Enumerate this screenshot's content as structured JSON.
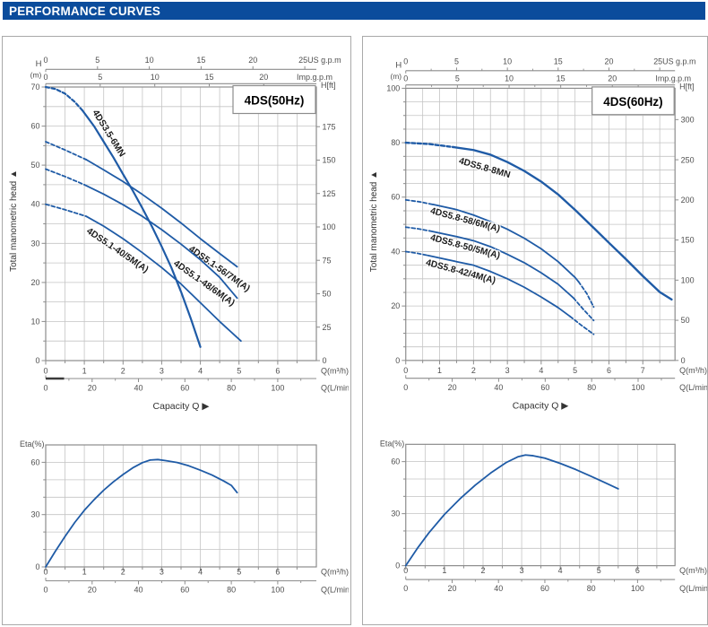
{
  "header": {
    "title": "PERFORMANCE CURVES"
  },
  "colors": {
    "accent_blue": "#0b4c9c",
    "curve_blue": "#1f5ba6",
    "grid": "#c4c4c4",
    "frame": "#8c8c8c",
    "tick_text": "#4f4f4f",
    "label_text": "#1c1c1c",
    "axis_mark_dark": "#3a3a3a"
  },
  "shared": {
    "y_axis_label": "Total manometric head",
    "y_axis_arrow": "▲",
    "capacity_label": "Capacity Q",
    "capacity_arrow": "▶",
    "head_unit_top": "H",
    "head_unit_bottom": "(m)",
    "head_ft_label": "H[ft]",
    "eta_label": "Eta(%)",
    "flow_unit": "Q(m³/h)",
    "flow_unit_lmin": "Q(L/min)"
  },
  "panels": [
    {
      "id": "50hz",
      "badge": "4DS(50Hz)",
      "charts": [
        "main-50hz",
        "eta-50hz"
      ]
    },
    {
      "id": "60hz",
      "badge": "4DS(60Hz)",
      "charts": [
        "main-60hz",
        "eta-60hz"
      ]
    }
  ],
  "chart_data": [
    {
      "id": "main-50hz",
      "type": "line",
      "title": "4DS(50Hz)",
      "xlabel": "Q(m³/h)",
      "x2label": "Q(L/min)",
      "ylabel": "H (m)",
      "y2label": "H[ft]",
      "xlim": [
        0,
        7
      ],
      "ylim": [
        0,
        70
      ],
      "xgrid": 0.5,
      "ygrid": 5,
      "xticks": [
        0,
        1,
        2,
        3,
        4,
        5,
        6
      ],
      "yticks": [
        0,
        10,
        20,
        30,
        40,
        50,
        60,
        70
      ],
      "ytick_minor": 5,
      "us_gpm": {
        "ticks": [
          0,
          5,
          10,
          15,
          20
        ],
        "end_tick": 25,
        "end_label": "25US g.p.m",
        "m3h_per_unit": 0.268
      },
      "imp_gpm": {
        "ticks": [
          0,
          5,
          10,
          15,
          20
        ],
        "label": "Imp.g.p.m",
        "m3h_per_unit": 0.282
      },
      "lmin": {
        "ticks": [
          0,
          20,
          40,
          60,
          80,
          100
        ],
        "minor_step": 10,
        "label": "Q(L/min)",
        "m3h_per_unit": 0.06,
        "zero_mark": true
      },
      "hft": {
        "ticks": [
          0,
          25,
          50,
          75,
          100,
          125,
          150,
          175
        ],
        "label": "H[ft]",
        "m_per_ft": 0.342
      },
      "series": [
        {
          "name": "4DS3.5-6MN",
          "width": 2.2,
          "label": {
            "x": 100,
            "y": 84,
            "angle": 58
          },
          "dash": [
            [
              0,
              70
            ],
            [
              0.25,
              69.5
            ],
            [
              0.5,
              68.3
            ],
            [
              0.75,
              66.2
            ],
            [
              0.95,
              64
            ]
          ],
          "solid": [
            [
              0.95,
              64
            ],
            [
              1.25,
              60
            ],
            [
              1.5,
              56
            ],
            [
              1.75,
              52
            ],
            [
              2,
              47.7
            ],
            [
              2.25,
              43.5
            ],
            [
              2.5,
              39
            ],
            [
              2.75,
              34.3
            ],
            [
              3,
              29.2
            ],
            [
              3.25,
              23.8
            ],
            [
              3.5,
              17.6
            ],
            [
              3.75,
              10.8
            ],
            [
              4,
              3.5
            ]
          ]
        },
        {
          "name": "4DS5.1-56/7M(A)",
          "width": 1.8,
          "label": {
            "x": 207,
            "y": 238,
            "angle": 35
          },
          "dash": [
            [
              0,
              56
            ],
            [
              0.5,
              53.9
            ],
            [
              1.05,
              51.4
            ]
          ],
          "solid": [
            [
              1.05,
              51.4
            ],
            [
              1.5,
              48.8
            ],
            [
              2,
              45.8
            ],
            [
              2.5,
              42.5
            ],
            [
              3,
              39
            ],
            [
              3.5,
              35.2
            ],
            [
              4,
              31.2
            ],
            [
              4.5,
              27.4
            ],
            [
              4.95,
              24
            ]
          ]
        },
        {
          "name": "4DS5.1-48/6M(A)",
          "width": 1.8,
          "label": {
            "x": 190,
            "y": 254,
            "angle": 35
          },
          "dash": [
            [
              0,
              49
            ],
            [
              0.5,
              47.1
            ],
            [
              1,
              45
            ]
          ],
          "solid": [
            [
              1,
              45
            ],
            [
              1.5,
              42.6
            ],
            [
              2,
              39.9
            ],
            [
              2.5,
              36.9
            ],
            [
              3,
              33.5
            ],
            [
              3.5,
              29.8
            ],
            [
              4,
              25.8
            ],
            [
              4.5,
              21.3
            ],
            [
              4.95,
              16
            ]
          ]
        },
        {
          "name": "4DS5.1-40/5M(A)",
          "width": 1.8,
          "label": {
            "x": 93,
            "y": 218,
            "angle": 34
          },
          "dash": [
            [
              0,
              40
            ],
            [
              0.5,
              38.6
            ],
            [
              1.05,
              36.9
            ]
          ],
          "solid": [
            [
              1.05,
              36.9
            ],
            [
              1.5,
              34.4
            ],
            [
              2,
              31.2
            ],
            [
              2.5,
              27.6
            ],
            [
              3,
              23.8
            ],
            [
              3.5,
              19.6
            ],
            [
              4,
              14.8
            ],
            [
              4.5,
              10
            ],
            [
              5.05,
              5
            ]
          ]
        }
      ]
    },
    {
      "id": "eta-50hz",
      "type": "line",
      "ylabel": "Eta(%)",
      "xlabel": "Q(m³/h)",
      "x2label": "Q(L/min)",
      "xlim": [
        0,
        7
      ],
      "ylim": [
        0,
        70
      ],
      "xgrid": 0.5,
      "ygrid": 10,
      "xticks": [
        0,
        1,
        2,
        3,
        4,
        5,
        6
      ],
      "yticks": [
        0,
        30,
        60
      ],
      "ytick_minor": 10,
      "lmin": {
        "ticks": [
          0,
          20,
          40,
          60,
          80,
          100
        ],
        "minor_step": 10,
        "label": "Q(L/min)",
        "m3h_per_unit": 0.06
      },
      "series": [
        {
          "name": "eta",
          "width": 1.8,
          "solid": [
            [
              0,
              0
            ],
            [
              0.25,
              9
            ],
            [
              0.5,
              17.5
            ],
            [
              0.75,
              25.5
            ],
            [
              1,
              32.5
            ],
            [
              1.25,
              38.5
            ],
            [
              1.5,
              44
            ],
            [
              1.75,
              48.8
            ],
            [
              2,
              53
            ],
            [
              2.25,
              56.8
            ],
            [
              2.5,
              59.8
            ],
            [
              2.7,
              61.3
            ],
            [
              2.9,
              61.6
            ],
            [
              3.1,
              61
            ],
            [
              3.4,
              59.9
            ],
            [
              3.7,
              58
            ],
            [
              4,
              55.5
            ],
            [
              4.3,
              52.7
            ],
            [
              4.6,
              49.3
            ],
            [
              4.8,
              46.8
            ],
            [
              4.95,
              42.6
            ]
          ]
        }
      ]
    },
    {
      "id": "main-60hz",
      "type": "line",
      "title": "4DS(60Hz)",
      "xlabel": "Q(m³/h)",
      "x2label": "Q(L/min)",
      "ylabel": "H (m)",
      "y2label": "H[ft]",
      "xlim": [
        0,
        7.95
      ],
      "ylim": [
        0,
        100
      ],
      "xgrid": 0.5,
      "ygrid": 5,
      "xticks": [
        0,
        1,
        2,
        3,
        4,
        5,
        6,
        7
      ],
      "yticks": [
        0,
        20,
        40,
        60,
        80,
        100
      ],
      "ytick_minor": 5,
      "us_gpm": {
        "ticks": [
          0,
          5,
          10,
          15,
          20
        ],
        "end_tick": 25,
        "end_label": "25US g.p.m",
        "m3h_per_unit": 0.3,
        "minor_step": 2.5
      },
      "imp_gpm": {
        "ticks": [
          0,
          5,
          10,
          15,
          20
        ],
        "label": "Imp.g.p.m",
        "m3h_per_unit": 0.305,
        "minor_step": 2.5
      },
      "lmin": {
        "ticks": [
          0,
          20,
          40,
          60,
          80,
          100
        ],
        "minor_step": 10,
        "label": "Q(L/min)",
        "m3h_per_unit": 0.0686
      },
      "hft": {
        "ticks": [
          0,
          50,
          100,
          150,
          200,
          250,
          300
        ],
        "label": "H[ft]",
        "m_per_ft": 0.295
      },
      "series": [
        {
          "name": "4DS5.8-8MN",
          "width": 2.4,
          "label": {
            "x": 107,
            "y": 140,
            "angle": 16
          },
          "dash": [
            [
              0,
              80
            ],
            [
              0.7,
              79.5
            ],
            [
              1.4,
              78.4
            ]
          ],
          "solid": [
            [
              1.4,
              78.4
            ],
            [
              2,
              77.3
            ],
            [
              2.5,
              75.6
            ],
            [
              3,
              72.9
            ],
            [
              3.5,
              69.6
            ],
            [
              4,
              65.7
            ],
            [
              4.5,
              61
            ],
            [
              5,
              55.3
            ],
            [
              5.5,
              49.3
            ],
            [
              6,
              43.2
            ],
            [
              6.5,
              37.2
            ],
            [
              7,
              31
            ],
            [
              7.5,
              25.1
            ],
            [
              7.85,
              22.4
            ]
          ]
        },
        {
          "name": "4DS5.8-58/6M(A)",
          "width": 1.8,
          "label": {
            "x": 75,
            "y": 196,
            "angle": 15
          },
          "dash": [
            [
              0,
              59
            ],
            [
              0.4,
              58.3
            ],
            [
              0.8,
              57.3
            ]
          ],
          "solid": [
            [
              0.8,
              57.3
            ],
            [
              1.5,
              55.4
            ],
            [
              2,
              53.4
            ],
            [
              2.5,
              51
            ],
            [
              3,
              48.2
            ],
            [
              3.5,
              44.9
            ],
            [
              4,
              41
            ],
            [
              4.5,
              36.3
            ],
            [
              5,
              30.5
            ],
            [
              5.1,
              29
            ]
          ],
          "dash2": [
            [
              5.1,
              29
            ],
            [
              5.35,
              24.5
            ],
            [
              5.55,
              19.6
            ]
          ]
        },
        {
          "name": "4DS5.8-50/5M(A)",
          "width": 1.8,
          "label": {
            "x": 75,
            "y": 226,
            "angle": 15
          },
          "dash": [
            [
              0,
              49
            ],
            [
              0.35,
              48.4
            ],
            [
              0.7,
              47.6
            ]
          ],
          "solid": [
            [
              0.7,
              47.6
            ],
            [
              1.5,
              45.5
            ],
            [
              2,
              44
            ],
            [
              2.5,
              41.8
            ],
            [
              3,
              39
            ],
            [
              3.5,
              35.9
            ],
            [
              4,
              32.2
            ],
            [
              4.5,
              28
            ],
            [
              4.95,
              23
            ]
          ],
          "dash2": [
            [
              4.95,
              23
            ],
            [
              5.25,
              18.7
            ],
            [
              5.55,
              14.7
            ]
          ]
        },
        {
          "name": "4DS5.8-42/4M(A)",
          "width": 1.8,
          "label": {
            "x": 70,
            "y": 254,
            "angle": 15
          },
          "dash": [
            [
              0,
              40
            ],
            [
              0.32,
              39.4
            ],
            [
              0.65,
              38.6
            ]
          ],
          "solid": [
            [
              0.65,
              38.6
            ],
            [
              1.5,
              36.3
            ],
            [
              2,
              35
            ],
            [
              2.5,
              32.7
            ],
            [
              3,
              30
            ],
            [
              3.5,
              26.9
            ],
            [
              4,
              23.3
            ],
            [
              4.5,
              19.4
            ],
            [
              4.85,
              16.2
            ]
          ],
          "dash2": [
            [
              4.85,
              16.2
            ],
            [
              5.2,
              12.8
            ],
            [
              5.55,
              9.6
            ]
          ]
        }
      ]
    },
    {
      "id": "eta-60hz",
      "type": "line",
      "ylabel": "Eta(%)",
      "xlabel": "Q(m³/h)",
      "x2label": "Q(L/min)",
      "xlim": [
        0,
        6.97
      ],
      "ylim": [
        0,
        70
      ],
      "xgrid": 0.5,
      "ygrid": 10,
      "xticks": [
        0,
        1,
        2,
        3,
        4,
        5,
        6
      ],
      "yticks": [
        0,
        30,
        60
      ],
      "ytick_minor": 10,
      "lmin": {
        "ticks": [
          0,
          20,
          40,
          60,
          80,
          100
        ],
        "minor_step": 10,
        "label": "Q(L/min)",
        "m3h_per_unit": 0.06
      },
      "series": [
        {
          "name": "eta",
          "width": 1.8,
          "solid": [
            [
              0,
              0
            ],
            [
              0.3,
              10
            ],
            [
              0.6,
              19
            ],
            [
              1,
              29.5
            ],
            [
              1.4,
              38.5
            ],
            [
              1.8,
              46.5
            ],
            [
              2.2,
              53.5
            ],
            [
              2.6,
              59.5
            ],
            [
              2.9,
              62.8
            ],
            [
              3.1,
              63.8
            ],
            [
              3.3,
              63.4
            ],
            [
              3.6,
              62
            ],
            [
              4,
              59
            ],
            [
              4.4,
              55.5
            ],
            [
              4.8,
              51.5
            ],
            [
              5.1,
              48.5
            ],
            [
              5.5,
              44.3
            ]
          ]
        }
      ]
    }
  ]
}
